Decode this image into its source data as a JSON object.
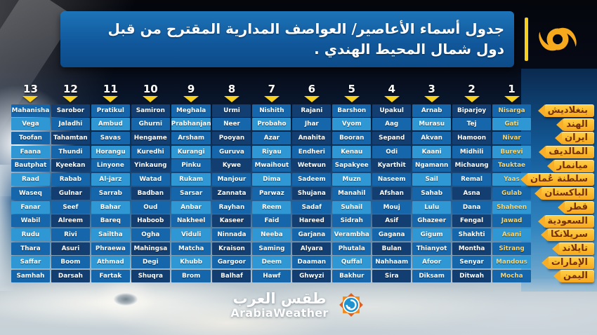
{
  "header": {
    "title_line1": "جدول أسماء الأعاصير/ العواصف المدارية المقترح من قبل",
    "title_line2": "دول شمال المحيط الهندي ."
  },
  "chart_data": {
    "type": "table",
    "title": "جدول أسماء الأعاصير/ العواصف المدارية المقترح من قبل دول شمال المحيط الهندي .",
    "column_numbers": [
      "13",
      "12",
      "11",
      "10",
      "9",
      "8",
      "7",
      "6",
      "5",
      "4",
      "3",
      "2",
      "1"
    ],
    "rows": [
      {
        "country": "بنغلاديش",
        "names": [
          "Mahanisha",
          "Sarobor",
          "Pratikul",
          "Samiron",
          "Meghala",
          "Urmi",
          "Nishith",
          "Rajani",
          "Barshon",
          "Upakul",
          "Arnab",
          "Biparjoy",
          "Nisarga"
        ]
      },
      {
        "country": "الهند",
        "names": [
          "Vega",
          "Jaladhi",
          "Ambud",
          "Ghurni",
          "Prabhanjan",
          "Neer",
          "Probaho",
          "Jhar",
          "Vyom",
          "Aag",
          "Murasu",
          "Tej",
          "Gati"
        ]
      },
      {
        "country": "ايران",
        "names": [
          "Toofan",
          "Tahamtan",
          "Savas",
          "Hengame",
          "Arsham",
          "Pooyan",
          "Azar",
          "Anahita",
          "Booran",
          "Sepand",
          "Akvan",
          "Hamoon",
          "Nivar"
        ]
      },
      {
        "country": "المالديف",
        "names": [
          "Faana",
          "Thundi",
          "Horangu",
          "Kuredhi",
          "Kurangi",
          "Guruva",
          "Riyau",
          "Endheri",
          "Kenau",
          "Odi",
          "Kaani",
          "Midhili",
          "Burevi"
        ]
      },
      {
        "country": "ميانمار",
        "names": [
          "Bautphat",
          "Kyeekan",
          "Linyone",
          "Yinkaung",
          "Pinku",
          "Kywe",
          "Mwaihout",
          "Wetwun",
          "Sapakyee",
          "Kyarthit",
          "Ngamann",
          "Michaung",
          "Tauktae"
        ]
      },
      {
        "country": "سلطنة عُمان",
        "names": [
          "Raad",
          "Rabab",
          "Al-jarz",
          "Watad",
          "Rukam",
          "Manjour",
          "Dima",
          "Sadeem",
          "Muzn",
          "Naseem",
          "Sail",
          "Remal",
          "Yaas"
        ]
      },
      {
        "country": "الباكستان",
        "names": [
          "Waseq",
          "Gulnar",
          "Sarrab",
          "Badban",
          "Sarsar",
          "Zannata",
          "Parwaz",
          "Shujana",
          "Manahil",
          "Afshan",
          "Sahab",
          "Asna",
          "Gulab"
        ]
      },
      {
        "country": "قطر",
        "names": [
          "Fanar",
          "Seef",
          "Bahar",
          "Oud",
          "Anbar",
          "Rayhan",
          "Reem",
          "Sadaf",
          "Suhail",
          "Mouj",
          "Lulu",
          "Dana",
          "Shaheen"
        ]
      },
      {
        "country": "السعودية",
        "names": [
          "Wabil",
          "Alreem",
          "Bareq",
          "Haboob",
          "Nakheel",
          "Kaseer",
          "Faid",
          "Hareed",
          "Sidrah",
          "Asif",
          "Ghazeer",
          "Fengal",
          "Jawad"
        ]
      },
      {
        "country": "سريلانكا",
        "names": [
          "Rudu",
          "Rivi",
          "Sailtha",
          "Ogha",
          "Viduli",
          "Ninnada",
          "Neeba",
          "Garjana",
          "Verambha",
          "Gagana",
          "Gigum",
          "Shakhti",
          "Asani"
        ]
      },
      {
        "country": "تايلاند",
        "names": [
          "Thara",
          "Asuri",
          "Phraewa",
          "Mahingsa",
          "Matcha",
          "Kraison",
          "Saming",
          "Alyara",
          "Phutala",
          "Bulan",
          "Thianyot",
          "Montha",
          "Sitrang"
        ]
      },
      {
        "country": "الإمارات",
        "names": [
          "Saffar",
          "Boom",
          "Athmad",
          "Degi",
          "Khubb",
          "Gargoor",
          "Deem",
          "Daaman",
          "Quffal",
          "Nahhaam",
          "Afoor",
          "Senyar",
          "Mandous"
        ]
      },
      {
        "country": "اليمن",
        "names": [
          "Samhah",
          "Darsah",
          "Fartak",
          "Shuqra",
          "Brom",
          "Balhaf",
          "Hawf",
          "Ghwyzi",
          "Bakhur",
          "Sira",
          "Diksam",
          "Ditwah",
          "Mocha"
        ]
      }
    ]
  },
  "footer": {
    "brand_ar": "طقس العرب",
    "brand_en": "ArabiaWeather"
  },
  "colors": {
    "accent_yellow": "#f7cf1e",
    "cyclone_orange": "#f6a91d",
    "header_bar": "#11589c",
    "cell_dark": "#123e71",
    "cell_medium": "#1566ab",
    "cell_light": "#2e97d4",
    "first_column_text": "#fcd66e",
    "label_gold_light": "#ffd04a",
    "label_gold_dark": "#f6a51f",
    "label_text": "#76300a"
  }
}
